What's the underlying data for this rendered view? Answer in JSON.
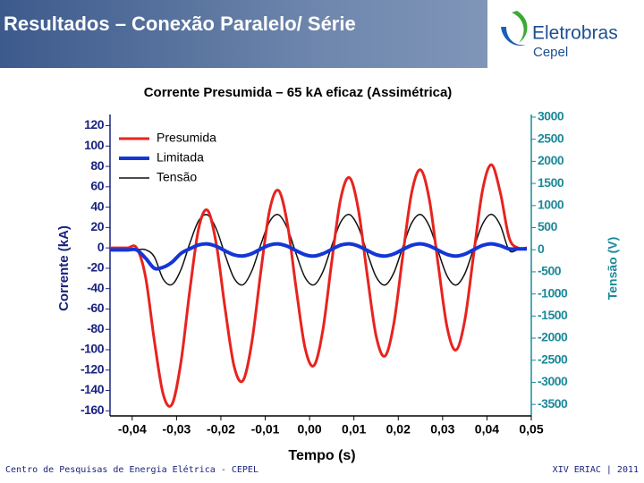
{
  "header": {
    "title": "Resultados – Conexão Paralelo/ Série",
    "logo": "Eletrobras",
    "logo_sub": "Cepel"
  },
  "footer": {
    "left": "Centro de Pesquisas de Energia Elétrica - CEPEL",
    "right": "XIV ERIAC | 2011"
  },
  "chart_data": {
    "type": "line",
    "title": "Corrente Presumida – 65 kA eficaz (Assimétrica)",
    "x_label": "Tempo (s)",
    "y_label": "Corrente (kA)",
    "y2_label": "Tensão (V)",
    "x": [
      -0.045,
      -0.043,
      -0.041,
      -0.039,
      -0.037,
      -0.035,
      -0.033,
      -0.031,
      -0.029,
      -0.027,
      -0.025,
      -0.023,
      -0.021,
      -0.019,
      -0.017,
      -0.015,
      -0.013,
      -0.011,
      -0.009,
      -0.007,
      -0.005,
      -0.003,
      -0.001,
      0.001,
      0.003,
      0.005,
      0.007,
      0.009,
      0.011,
      0.013,
      0.015,
      0.017,
      0.019,
      0.021,
      0.023,
      0.025,
      0.027,
      0.029,
      0.031,
      0.033,
      0.035,
      0.037,
      0.039,
      0.041,
      0.043,
      0.045,
      0.047,
      0.049
    ],
    "series": [
      {
        "name": "Presumida",
        "color": "#e8231f",
        "width": 3,
        "axis": "y",
        "values": [
          0,
          0,
          0,
          0,
          -28.2,
          -91.2,
          -143.9,
          -153.4,
          -112.0,
          -41.5,
          19.3,
          36.9,
          3.0,
          -61.1,
          -116.6,
          -130.2,
          -92.2,
          -23.5,
          37.2,
          56.4,
          23.6,
          -40.6,
          -98.6,
          -115.5,
          -80.7,
          -13.6,
          47.9,
          68.9,
          37.7,
          -26.5,
          -86.3,
          -106.2,
          -74.3,
          -8.4,
          53.7,
          76.7,
          47.6,
          -16.2,
          -77.6,
          -100.3,
          -71.2,
          -6.5,
          56.5,
          81.7,
          54.6,
          10,
          0,
          0
        ]
      },
      {
        "name": "Limitada",
        "color": "#1436d6",
        "width": 4,
        "axis": "y",
        "values": [
          -2,
          -2,
          -2,
          -2,
          -10,
          -20,
          -19,
          -14,
          -5.4,
          -0.9,
          2.9,
          3.9,
          1.5,
          -3.0,
          -6.9,
          -7.9,
          -5.6,
          -1.1,
          2.8,
          3.9,
          1.6,
          -2.8,
          -6.7,
          -8.0,
          -5.7,
          -1.4,
          2.7,
          4.0,
          1.8,
          -2.5,
          -6.6,
          -8.0,
          -5.9,
          -1.6,
          2.5,
          4.0,
          2.0,
          -2.3,
          -6.4,
          -8.0,
          -6.1,
          -1.8,
          2.4,
          4.0,
          2.2,
          -1,
          -1,
          -1
        ]
      },
      {
        "name": "Tensão",
        "color": "#111111",
        "width": 1.5,
        "axis": "y2",
        "values": [
          0,
          0,
          0,
          0,
          0,
          -162,
          -666,
          -785,
          -449,
          147,
          658,
          788,
          462,
          -132,
          -649,
          -791,
          -474,
          117,
          639,
          793,
          485,
          -102,
          -631,
          -794,
          -498,
          86,
          622,
          796,
          510,
          -71,
          -611,
          -798,
          -522,
          56,
          601,
          798,
          534,
          -40,
          -591,
          -799,
          -545,
          25,
          580,
          800,
          555,
          -10,
          0,
          0
        ]
      }
    ],
    "xlim": [
      -0.045,
      0.05
    ],
    "xticks": [
      {
        "value": -0.04,
        "label": "-0,04"
      },
      {
        "value": -0.03,
        "label": "-0,03"
      },
      {
        "value": -0.02,
        "label": "-0,02"
      },
      {
        "value": -0.01,
        "label": "-0,01"
      },
      {
        "value": 0,
        "label": "0,00"
      },
      {
        "value": 0.01,
        "label": "0,01"
      },
      {
        "value": 0.02,
        "label": "0,02"
      },
      {
        "value": 0.03,
        "label": "0,03"
      },
      {
        "value": 0.04,
        "label": "0,04"
      },
      {
        "value": 0.05,
        "label": "0,05"
      }
    ],
    "ylim": [
      -165,
      131
    ],
    "yticks": [
      120,
      100,
      80,
      60,
      40,
      20,
      0,
      -20,
      -40,
      -60,
      -80,
      -100,
      -120,
      -140,
      -160
    ],
    "y2lim": [
      -3760,
      3060
    ],
    "y2ticks": [
      3000,
      2500,
      2000,
      1500,
      1000,
      500,
      0,
      -500,
      -1000,
      -1500,
      -2000,
      -2500,
      -3000,
      -3500
    ],
    "legend": "upper left",
    "grid": false
  }
}
